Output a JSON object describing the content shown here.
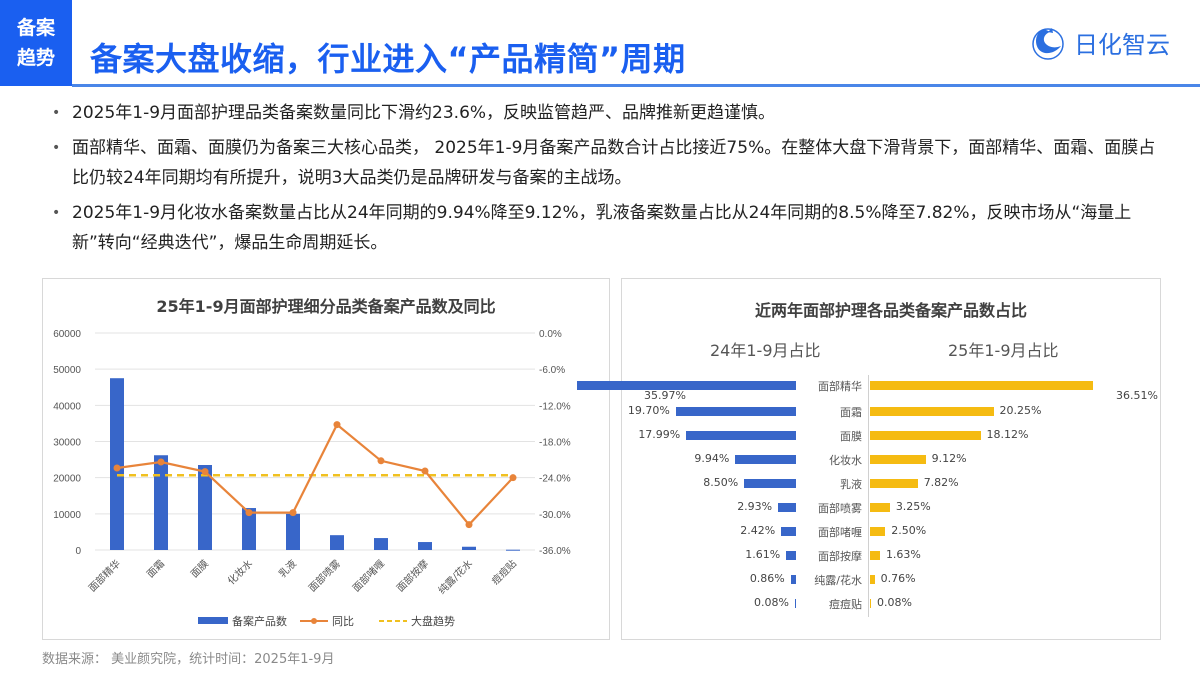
{
  "header": {
    "tag_line1": "备案",
    "tag_line2": "趋势",
    "title": "备案大盘收缩，行业进入“产品精简”周期",
    "logo_icon": "rihua-zhiyun-logo-icon",
    "logo_text": "日化智云",
    "brand_color": "#1a5ff0"
  },
  "bullets": [
    "2025年1-9月面部护理品类备案数量同比下滑约23.6%，反映监管趋严、品牌推新更趋谨慎。",
    "面部精华、面霜、面膜仍为备案三大核心品类，  2025年1-9月备案产品数合计占比接近75%。在整体大盘下滑背景下，面部精华、面霜、面膜占比仍较24年同期均有所提升，说明3大品类仍是品牌研发与备案的主战场。",
    "2025年1-9月化妆水备案数量占比从24年同期的9.94%降至9.12%，乳液备案数量占比从24年同期的8.5%降至7.82%，反映市场从“海量上新”转向“经典迭代”，爆品生命周期延长。"
  ],
  "source": "数据来源：  美业颜究院，统计时间：2025年1-9月",
  "chart_data": [
    {
      "type": "bar",
      "title": "25年1-9月面部护理细分品类备案产品数及同比",
      "categories": [
        "面部精华",
        "面霜",
        "面膜",
        "化妆水",
        "乳液",
        "面部喷雾",
        "面部啫喱",
        "面部按摩",
        "纯露/花水",
        "痘痘贴"
      ],
      "series": [
        {
          "name": "备案产品数",
          "type": "bar",
          "axis": "left",
          "color": "#3866c9",
          "values": [
            47500,
            26200,
            23500,
            11600,
            10000,
            4100,
            3300,
            2200,
            900,
            80
          ]
        },
        {
          "name": "同比",
          "type": "line",
          "axis": "right",
          "color": "#e8843a",
          "values": [
            -22.4,
            -21.4,
            -23.0,
            -29.8,
            -29.8,
            -15.2,
            -21.2,
            -22.9,
            -31.8,
            -24.0
          ]
        },
        {
          "name": "大盘趋势",
          "type": "line-dashed",
          "axis": "right",
          "color": "#f0c020",
          "values": [
            -23.6,
            -23.6,
            -23.6,
            -23.6,
            -23.6,
            -23.6,
            -23.6,
            -23.6,
            -23.6,
            -23.6
          ]
        }
      ],
      "left_axis": {
        "ticks": [
          "0",
          "10000",
          "20000",
          "30000",
          "40000",
          "50000",
          "60000"
        ],
        "ylim": [
          0,
          60000
        ]
      },
      "right_axis": {
        "ticks": [
          "0.0%",
          "-6.0%",
          "-12.0%",
          "-18.0%",
          "-24.0%",
          "-30.0%",
          "-36.0%"
        ],
        "ylim": [
          -36,
          0
        ]
      },
      "grid": true,
      "legend_position": "bottom",
      "legend": [
        "备案产品数",
        "同比",
        "大盘趋势"
      ]
    },
    {
      "type": "bar",
      "orientation": "horizontal-butterfly",
      "title": "近两年面部护理各品类备案产品数占比",
      "categories": [
        "面部精华",
        "面霜",
        "面膜",
        "化妆水",
        "乳液",
        "面部喷雾",
        "面部啫喱",
        "面部按摩",
        "纯露/花水",
        "痘痘贴"
      ],
      "series": [
        {
          "name": "24年1-9月占比",
          "color": "#3866c9",
          "values": [
            35.97,
            19.7,
            17.99,
            9.94,
            8.5,
            2.93,
            2.42,
            1.61,
            0.86,
            0.08
          ],
          "labels": [
            "35.97%",
            "19.70%",
            "17.99%",
            "9.94%",
            "8.50%",
            "2.93%",
            "2.42%",
            "1.61%",
            "0.86%",
            "0.08%"
          ]
        },
        {
          "name": "25年1-9月占比",
          "color": "#f5bb12",
          "values": [
            36.51,
            20.25,
            18.12,
            9.12,
            7.82,
            3.25,
            2.5,
            1.63,
            0.76,
            0.08
          ],
          "labels": [
            "36.51%",
            "20.25%",
            "18.12%",
            "9.12%",
            "7.82%",
            "3.25%",
            "2.50%",
            "1.63%",
            "0.76%",
            "0.08%"
          ]
        }
      ],
      "subtitles": [
        "24年1-9月占比",
        "25年1-9月占比"
      ]
    }
  ]
}
